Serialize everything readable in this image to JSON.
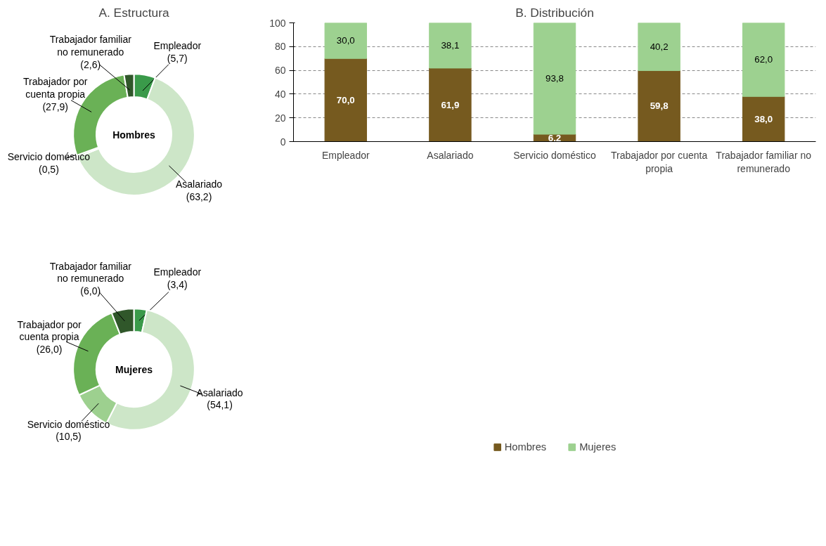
{
  "chart_data": [
    {
      "type": "donut",
      "title": "A. Estructura",
      "annotations": [
        "Hombres"
      ],
      "categories": [
        "Empleador",
        "Asalariado",
        "Servicio doméstico",
        "Trabajador por cuenta propia",
        "Trabajador familiar no remunerado"
      ],
      "values": [
        5.7,
        63.2,
        0.5,
        27.9,
        2.6
      ],
      "value_labels": [
        "(5,7)",
        "(63,2)",
        "(0,5)",
        "(27,9)",
        "(2,6)"
      ],
      "colors": [
        "#3a9a4a",
        "#cde6c8",
        "#9dd08f",
        "#6ab156",
        "#30572a"
      ]
    },
    {
      "type": "donut",
      "annotations": [
        "Mujeres"
      ],
      "categories": [
        "Empleador",
        "Asalariado",
        "Servicio doméstico",
        "Trabajador por cuenta propia",
        "Trabajador familiar no remunerado"
      ],
      "values": [
        3.4,
        54.1,
        10.5,
        26.0,
        6.0
      ],
      "value_labels": [
        "(3,4)",
        "(54,1)",
        "(10,5)",
        "(26,0)",
        "(6,0)"
      ],
      "colors": [
        "#3a9a4a",
        "#cde6c8",
        "#9dd08f",
        "#6ab156",
        "#30572a"
      ]
    },
    {
      "type": "bar",
      "title": "B. Distribución",
      "stacked": true,
      "categories": [
        "Empleador",
        "Asalariado",
        "Servicio doméstico",
        "Trabajador por cuenta propia",
        "Trabajador familiar no remunerado"
      ],
      "series": [
        {
          "name": "Hombres",
          "color": "#765a1f",
          "values": [
            70.0,
            61.9,
            6.2,
            59.8,
            38.0
          ],
          "value_labels": [
            "70,0",
            "61,9",
            "6,2",
            "59,8",
            "38,0"
          ]
        },
        {
          "name": "Mujeres",
          "color": "#9dd190",
          "values": [
            30.0,
            38.1,
            93.8,
            40.2,
            62.0
          ],
          "value_labels": [
            "30,0",
            "38,1",
            "93,8",
            "40,2",
            "62,0"
          ]
        }
      ],
      "ylim": [
        0,
        100
      ],
      "yticks": [
        0,
        20,
        40,
        60,
        80,
        100
      ],
      "grid": "y",
      "legend": "bottom"
    }
  ]
}
